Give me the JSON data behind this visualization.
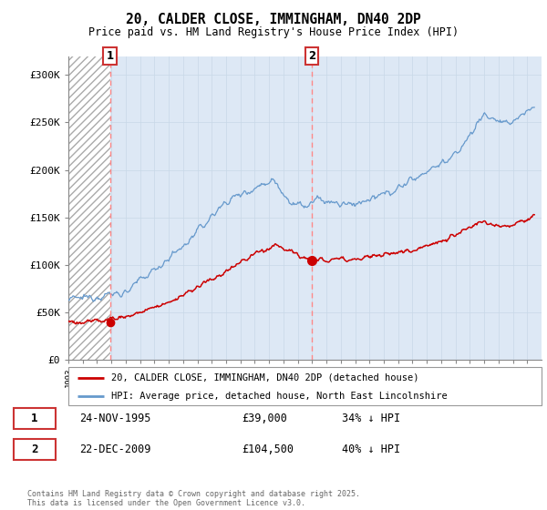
{
  "title1": "20, CALDER CLOSE, IMMINGHAM, DN40 2DP",
  "title2": "Price paid vs. HM Land Registry's House Price Index (HPI)",
  "legend_line1": "20, CALDER CLOSE, IMMINGHAM, DN40 2DP (detached house)",
  "legend_line2": "HPI: Average price, detached house, North East Lincolnshire",
  "annotation1_label": "1",
  "annotation1_date": "24-NOV-1995",
  "annotation1_price": "£39,000",
  "annotation1_hpi": "34% ↓ HPI",
  "annotation2_label": "2",
  "annotation2_date": "22-DEC-2009",
  "annotation2_price": "£104,500",
  "annotation2_hpi": "40% ↓ HPI",
  "footer": "Contains HM Land Registry data © Crown copyright and database right 2025.\nThis data is licensed under the Open Government Licence v3.0.",
  "red_line_color": "#cc0000",
  "blue_line_color": "#6699cc",
  "chart_bg_color": "#dde8f5",
  "hatch_facecolor": "#ffffff",
  "hatch_edgecolor": "#aaaaaa",
  "vline_color": "#ff8888",
  "point1_x": 1995.9,
  "point1_y": 39000,
  "point2_x": 2009.97,
  "point2_y": 104500,
  "ylim": [
    0,
    320000
  ],
  "xlim": [
    1993.0,
    2026.0
  ],
  "hatch_end": 1995.9
}
